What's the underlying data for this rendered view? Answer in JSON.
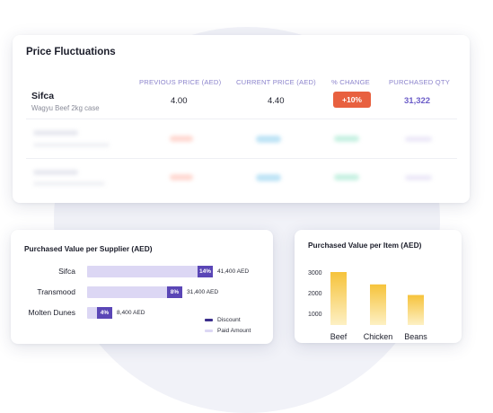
{
  "price_card": {
    "title": "Price Fluctuations",
    "headers": {
      "previous": "PREVIOUS PRICE (AED)",
      "current": "CURRENT PRICE (AED)",
      "change": "% CHANGE",
      "qty": "PURCHASED QTY"
    },
    "row": {
      "supplier": "Sifca",
      "product": "Wagyu Beef 2kg case",
      "previous": "4.00",
      "current": "4.40",
      "change": "+10%",
      "qty": "31,322"
    },
    "colors": {
      "change_badge": "#e8603f",
      "qty": "#6b5cc8",
      "header": "#8c84cc"
    }
  },
  "supplier_card": {
    "title": "Purchased Value per Supplier (AED)",
    "legend": {
      "discount": "Discount",
      "paid": "Paid Amount"
    },
    "colors": {
      "discount": "#5a46b6",
      "paid": "#dcd7f4"
    }
  },
  "item_card": {
    "title": "Purchased Value per Item (AED)",
    "bar_color": "#f6c33b"
  },
  "chart_data": [
    {
      "type": "bar",
      "orientation": "horizontal",
      "title": "Purchased Value per Supplier (AED)",
      "categories": [
        "Sifca",
        "Transmood",
        "Molten Dunes"
      ],
      "series": [
        {
          "name": "Discount",
          "values": [
            "14%",
            "8%",
            "4%"
          ]
        },
        {
          "name": "Paid Amount",
          "values": [
            41400,
            31400,
            8400
          ]
        }
      ],
      "amount_labels": [
        "41,400 AED",
        "31,400 AED",
        "8,400 AED"
      ],
      "xlim": [
        0,
        41400
      ],
      "legend": "bottom-right"
    },
    {
      "type": "bar",
      "title": "Purchased Value per Item (AED)",
      "categories": [
        "Beef",
        "Chicken",
        "Beans"
      ],
      "values": [
        3000,
        2300,
        1700
      ],
      "yticks": [
        "3000",
        "2000",
        "1000"
      ],
      "ylim": [
        0,
        3500
      ],
      "grid": false
    }
  ]
}
